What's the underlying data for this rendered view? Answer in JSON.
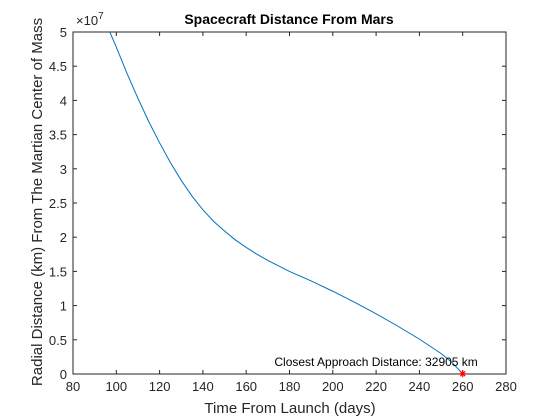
{
  "chart_data": {
    "type": "line",
    "title": "Spacecraft Distance From Mars",
    "xlabel": "Time From Launch (days)",
    "ylabel": "Radial Distance (km) From The Martian Center of Mass",
    "xlim": [
      80,
      280
    ],
    "ylim": [
      0,
      50000000
    ],
    "x_ticks": [
      80,
      100,
      120,
      140,
      160,
      180,
      200,
      220,
      240,
      260,
      280
    ],
    "y_ticks": [
      0,
      0.5,
      1,
      1.5,
      2,
      2.5,
      3,
      3.5,
      4,
      4.5,
      5
    ],
    "y_exponent_label": "×10",
    "y_exponent": "7",
    "grid": false,
    "series": [
      {
        "color": "#0072BD",
        "x": [
          97,
          100,
          105,
          110,
          115,
          120,
          125,
          130,
          135,
          140,
          145,
          150,
          155,
          160,
          165,
          170,
          175,
          180,
          190,
          200,
          210,
          220,
          230,
          240,
          250,
          255,
          260
        ],
        "y": [
          50000000,
          47800000,
          43900000,
          40300000,
          36900000,
          33800000,
          30900000,
          28300000,
          26000000,
          24000000,
          22300000,
          20900000,
          19600000,
          18500000,
          17500000,
          16600000,
          15800000,
          15000000,
          13600000,
          12100000,
          10500000,
          8800000,
          7000000,
          5100000,
          3000000,
          1700000,
          32905
        ]
      }
    ],
    "marker": {
      "x": 260,
      "y": 32905,
      "symbol": "*",
      "color": "#FF0000"
    },
    "annotation": {
      "text": "Closest Approach Distance: 32905 km",
      "x": 220,
      "y": 1600000
    }
  }
}
